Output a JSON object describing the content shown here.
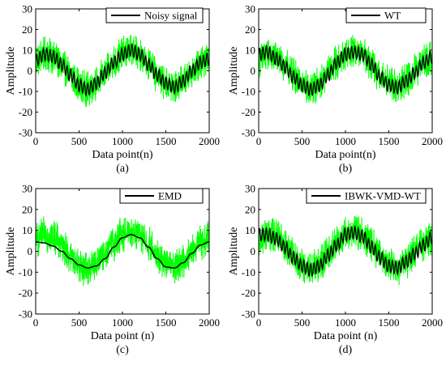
{
  "colors": {
    "noisy": "#00ff00",
    "denoised": "#000000",
    "axes": "#000000",
    "background": "#ffffff"
  },
  "chart_data": [
    {
      "type": "line",
      "caption": "(a)",
      "xlabel": "Data point(n)",
      "ylabel": "Amplitude",
      "xlim": [
        0,
        2000
      ],
      "ylim": [
        -30,
        30
      ],
      "xticks": [
        0,
        500,
        1000,
        1500,
        2000
      ],
      "yticks": [
        -30,
        -20,
        -10,
        0,
        10,
        20,
        30
      ],
      "grid": false,
      "legend_position": "top-right",
      "series": [
        {
          "role": "noisy",
          "color": "#00ff00",
          "shape": "sine plus dense noise",
          "x": [
            0,
            100,
            200,
            300,
            400,
            500,
            600,
            700,
            800,
            900,
            1000,
            1100,
            1200,
            1300,
            1400,
            1500,
            1600,
            1700,
            1800,
            1900,
            2000
          ],
          "center": [
            5,
            8,
            7,
            3,
            -2,
            -7,
            -9,
            -6,
            -1,
            4,
            8,
            10,
            8,
            3,
            -2,
            -6,
            -8,
            -5,
            0,
            4,
            6
          ],
          "noise_amplitude": 9
        },
        {
          "name": "Noisy signal",
          "role": "denoised",
          "color": "#000000",
          "x": [
            0,
            100,
            200,
            300,
            400,
            500,
            600,
            700,
            800,
            900,
            1000,
            1100,
            1200,
            1300,
            1400,
            1500,
            1600,
            1700,
            1800,
            1900,
            2000
          ],
          "y": [
            5,
            8,
            7,
            3,
            -2,
            -7,
            -9,
            -6,
            -1,
            4,
            8,
            10,
            8,
            3,
            -2,
            -6,
            -8,
            -5,
            0,
            4,
            6
          ],
          "ripple_amplitude": 3
        }
      ]
    },
    {
      "type": "line",
      "caption": "(b)",
      "xlabel": "Data point(n)",
      "ylabel": "Amplitude",
      "xlim": [
        0,
        2000
      ],
      "ylim": [
        -30,
        30
      ],
      "xticks": [
        0,
        500,
        1000,
        1500,
        2000
      ],
      "yticks": [
        -30,
        -20,
        -10,
        0,
        10,
        20,
        30
      ],
      "grid": false,
      "legend_position": "top-right",
      "series": [
        {
          "role": "noisy",
          "color": "#00ff00",
          "shape": "sine plus dense noise",
          "x": [
            0,
            100,
            200,
            300,
            400,
            500,
            600,
            700,
            800,
            900,
            1000,
            1100,
            1200,
            1300,
            1400,
            1500,
            1600,
            1700,
            1800,
            1900,
            2000
          ],
          "center": [
            5,
            8,
            7,
            3,
            -2,
            -7,
            -9,
            -6,
            -1,
            4,
            8,
            10,
            8,
            3,
            -2,
            -6,
            -8,
            -5,
            0,
            4,
            6
          ],
          "noise_amplitude": 9
        },
        {
          "name": "WT",
          "role": "denoised",
          "color": "#000000",
          "x": [
            0,
            100,
            200,
            300,
            400,
            500,
            600,
            700,
            800,
            900,
            1000,
            1100,
            1200,
            1300,
            1400,
            1500,
            1600,
            1700,
            1800,
            1900,
            2000
          ],
          "y": [
            8,
            9,
            6,
            2,
            -3,
            -7,
            -9,
            -7,
            -2,
            4,
            8,
            9,
            8,
            3,
            -3,
            -7,
            -8,
            -5,
            -1,
            4,
            7
          ],
          "ripple_amplitude": 3
        }
      ]
    },
    {
      "type": "line",
      "caption": "(c)",
      "xlabel": "Data point (n)",
      "ylabel": "Amplitude",
      "xlim": [
        0,
        2000
      ],
      "ylim": [
        -30,
        30
      ],
      "xticks": [
        0,
        500,
        1000,
        1500,
        2000
      ],
      "yticks": [
        -30,
        -20,
        -10,
        0,
        10,
        20,
        30
      ],
      "grid": false,
      "legend_position": "top-right",
      "series": [
        {
          "role": "noisy",
          "color": "#00ff00",
          "shape": "sine plus dense noise",
          "x": [
            0,
            100,
            200,
            300,
            400,
            500,
            600,
            700,
            800,
            900,
            1000,
            1100,
            1200,
            1300,
            1400,
            1500,
            1600,
            1700,
            1800,
            1900,
            2000
          ],
          "center": [
            5,
            8,
            7,
            3,
            -2,
            -7,
            -9,
            -6,
            -1,
            4,
            8,
            10,
            8,
            3,
            -2,
            -6,
            -8,
            -5,
            0,
            4,
            6
          ],
          "noise_amplitude": 9
        },
        {
          "name": "EMD",
          "role": "denoised",
          "color": "#000000",
          "x": [
            0,
            100,
            200,
            300,
            400,
            500,
            600,
            700,
            800,
            900,
            1000,
            1100,
            1200,
            1300,
            1400,
            1500,
            1600,
            1700,
            1800,
            1900,
            2000
          ],
          "y": [
            4.5,
            4,
            2.5,
            0,
            -3.5,
            -6.5,
            -8,
            -7,
            -3.5,
            2,
            6.5,
            8,
            6.5,
            2,
            -3.5,
            -7.5,
            -8,
            -5.5,
            -1,
            3,
            4.5
          ],
          "ripple_amplitude": 0
        }
      ]
    },
    {
      "type": "line",
      "caption": "(d)",
      "xlabel": "Data point (n)",
      "ylabel": "Amplitude",
      "xlim": [
        0,
        2000
      ],
      "ylim": [
        -30,
        30
      ],
      "xticks": [
        0,
        500,
        1000,
        1500,
        2000
      ],
      "yticks": [
        -30,
        -20,
        -10,
        0,
        10,
        20,
        30
      ],
      "grid": false,
      "legend_position": "top-right",
      "series": [
        {
          "role": "noisy",
          "color": "#00ff00",
          "shape": "sine plus dense noise",
          "x": [
            0,
            100,
            200,
            300,
            400,
            500,
            600,
            700,
            800,
            900,
            1000,
            1100,
            1200,
            1300,
            1400,
            1500,
            1600,
            1700,
            1800,
            1900,
            2000
          ],
          "center": [
            5,
            8,
            7,
            3,
            -2,
            -7,
            -9,
            -6,
            -1,
            4,
            8,
            10,
            8,
            3,
            -2,
            -6,
            -8,
            -5,
            0,
            4,
            6
          ],
          "noise_amplitude": 9
        },
        {
          "name": "IBWK-VMD-WT",
          "role": "denoised",
          "color": "#000000",
          "x": [
            0,
            100,
            200,
            300,
            400,
            500,
            600,
            700,
            800,
            900,
            1000,
            1100,
            1200,
            1300,
            1400,
            1500,
            1600,
            1700,
            1800,
            1900,
            2000
          ],
          "y": [
            8,
            8,
            6,
            2,
            -3,
            -7,
            -9,
            -7,
            -2,
            3,
            8,
            9,
            7,
            2,
            -3,
            -7,
            -8,
            -5,
            -1,
            3,
            7
          ],
          "ripple_amplitude": 3
        }
      ]
    }
  ]
}
